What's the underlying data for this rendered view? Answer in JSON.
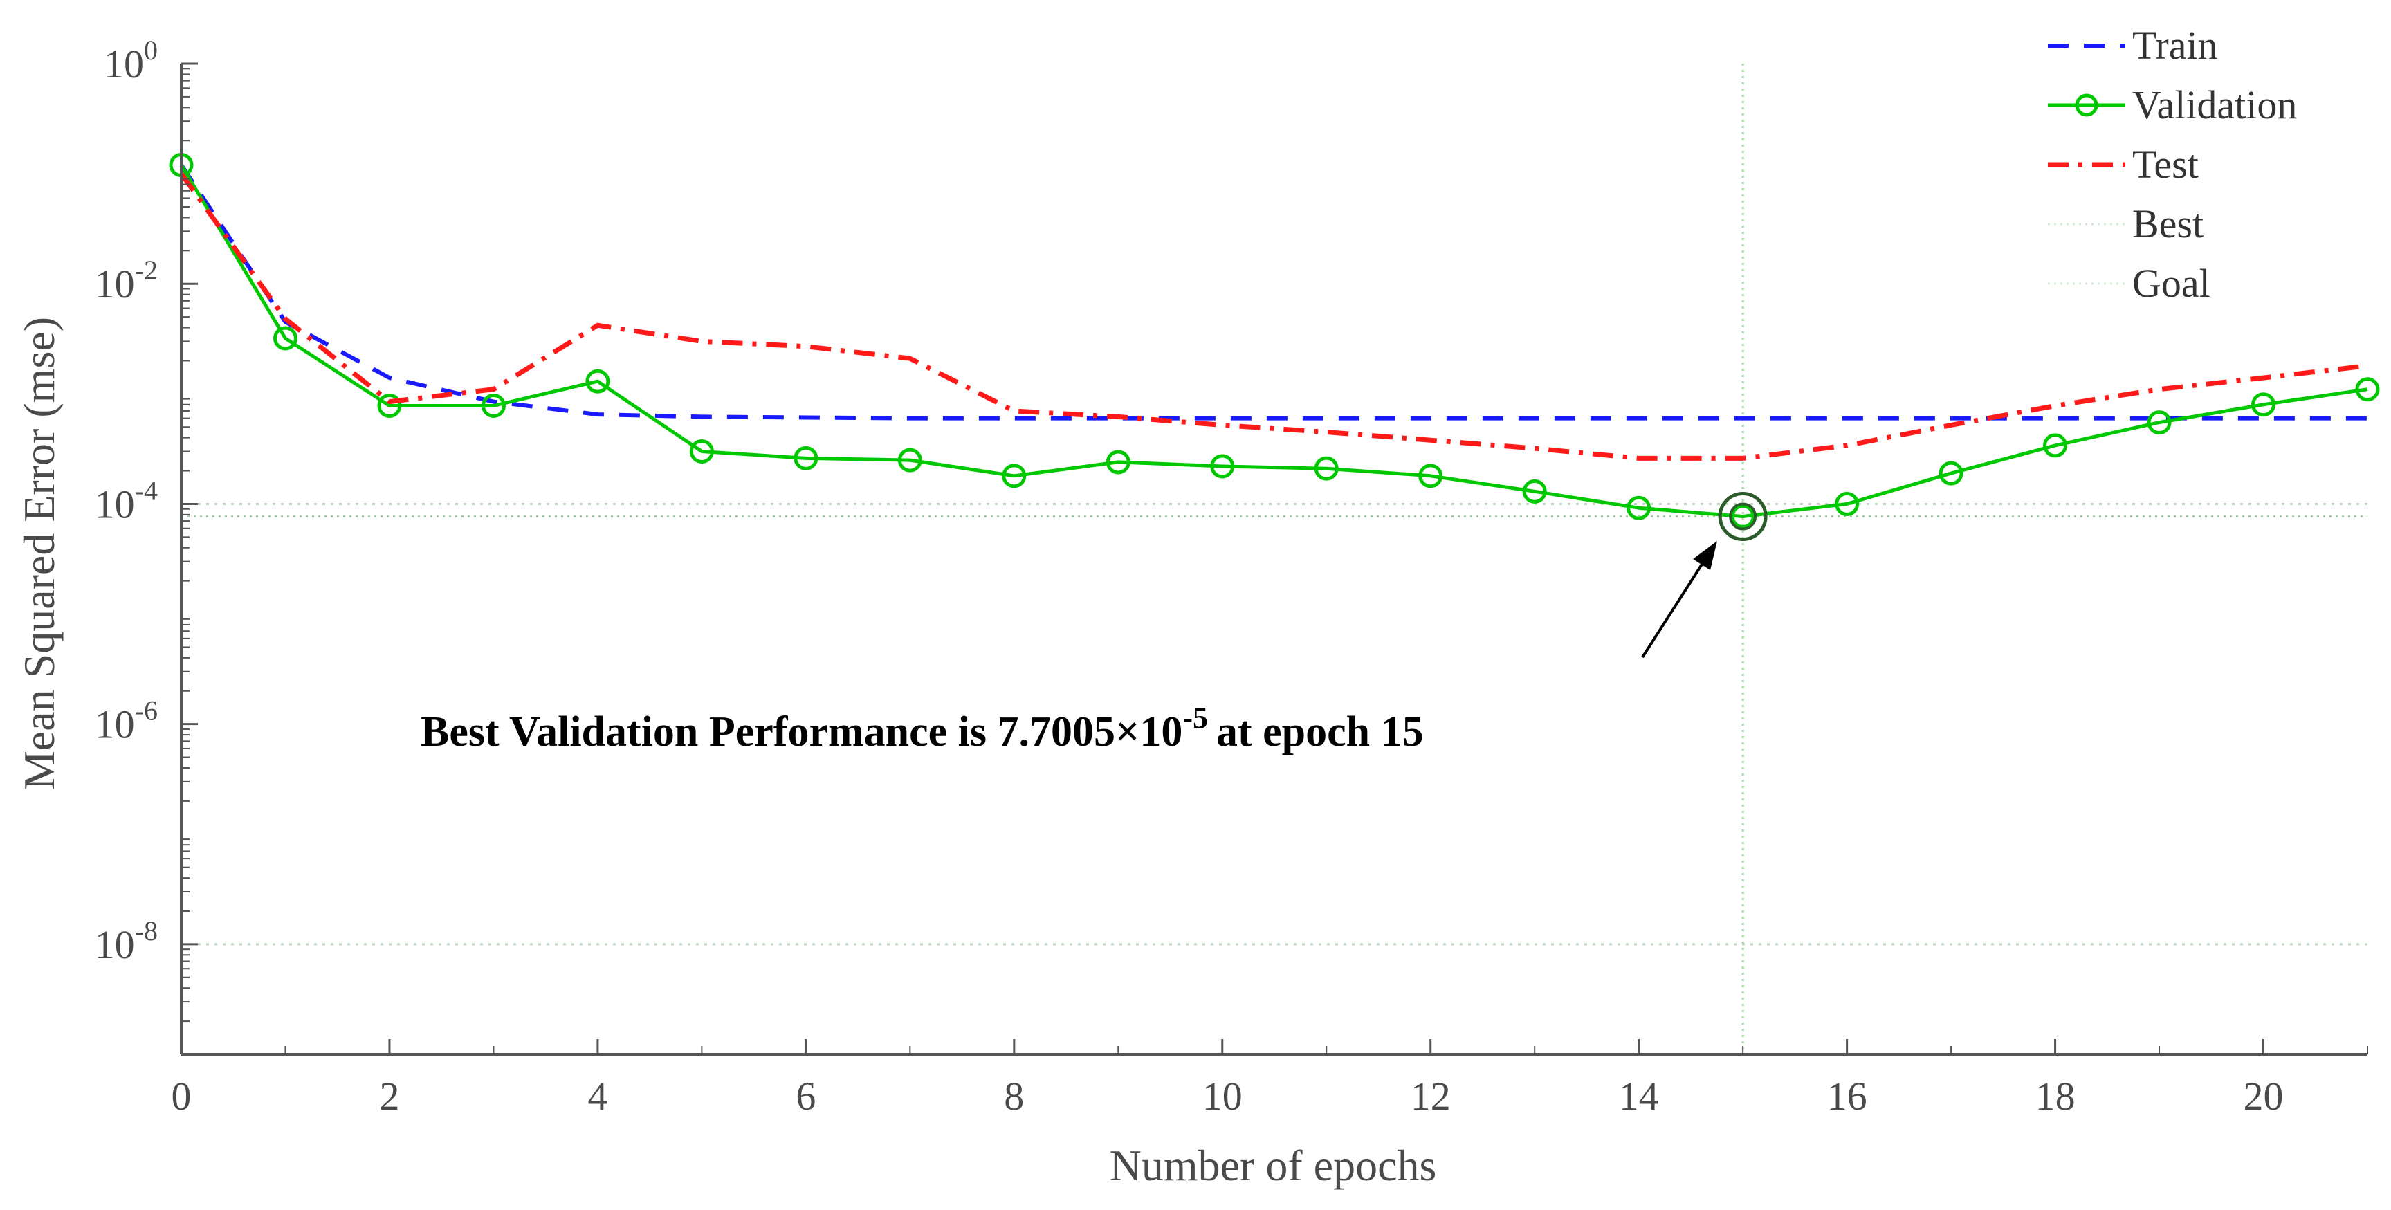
{
  "chart_data": {
    "type": "line",
    "title": "",
    "xlabel": "Number of epochs",
    "ylabel": "Mean Squared Error  (mse)",
    "xlim": [
      0,
      21
    ],
    "ylim": [
      1e-09,
      1
    ],
    "yscale": "log",
    "x_ticks": [
      0,
      2,
      4,
      6,
      8,
      10,
      12,
      14,
      16,
      18,
      20
    ],
    "y_ticks": [
      {
        "exp": -8,
        "base": "10",
        "power": "-8"
      },
      {
        "exp": -6,
        "base": "10",
        "power": "-6"
      },
      {
        "exp": -4,
        "base": "10",
        "power": "-4"
      },
      {
        "exp": -2,
        "base": "10",
        "power": "-2"
      },
      {
        "exp": 0,
        "base": "10",
        "power": "0"
      }
    ],
    "x": [
      0,
      1,
      2,
      3,
      4,
      5,
      6,
      7,
      8,
      9,
      10,
      11,
      12,
      13,
      14,
      15,
      16,
      17,
      18,
      19,
      20,
      21
    ],
    "series": [
      {
        "name": "Train",
        "color": "#1a1aff",
        "style": "dashed",
        "values": [
          0.12,
          0.0045,
          0.0014,
          0.00085,
          0.00065,
          0.00062,
          0.00061,
          0.0006,
          0.0006,
          0.0006,
          0.0006,
          0.0006,
          0.0006,
          0.0006,
          0.0006,
          0.0006,
          0.0006,
          0.0006,
          0.0006,
          0.0006,
          0.0006,
          0.0006
        ]
      },
      {
        "name": "Validation",
        "color": "#00c800",
        "style": "solid-circle",
        "values": [
          0.12,
          0.0032,
          0.00078,
          0.00078,
          0.0013,
          0.0003,
          0.00026,
          0.00025,
          0.00018,
          0.00024,
          0.00022,
          0.00021,
          0.00018,
          0.00013,
          9.2e-05,
          7.7e-05,
          0.0001,
          0.00019,
          0.00034,
          0.00055,
          0.0008,
          0.0011
        ]
      },
      {
        "name": "Test",
        "color": "#ff1a1a",
        "style": "dashdot",
        "values": [
          0.1,
          0.0048,
          0.00085,
          0.0011,
          0.0042,
          0.003,
          0.0027,
          0.0021,
          0.0007,
          0.00062,
          0.00052,
          0.00045,
          0.00038,
          0.00032,
          0.00026,
          0.00026,
          0.00034,
          0.00052,
          0.00078,
          0.0011,
          0.0014,
          0.0018
        ]
      }
    ],
    "best": {
      "label": "Best",
      "epoch": 15,
      "value": 7.7005e-05
    },
    "goal": {
      "label": "Goal",
      "value": 0
    },
    "legend": {
      "position": "top-right",
      "entries": [
        "Train",
        "Validation",
        "Test",
        "Best",
        "Goal"
      ]
    },
    "annotation": {
      "prefix": "Best Validation Performance is 7.7005×10",
      "exponent": "-5",
      "suffix": "at epoch 15"
    }
  }
}
